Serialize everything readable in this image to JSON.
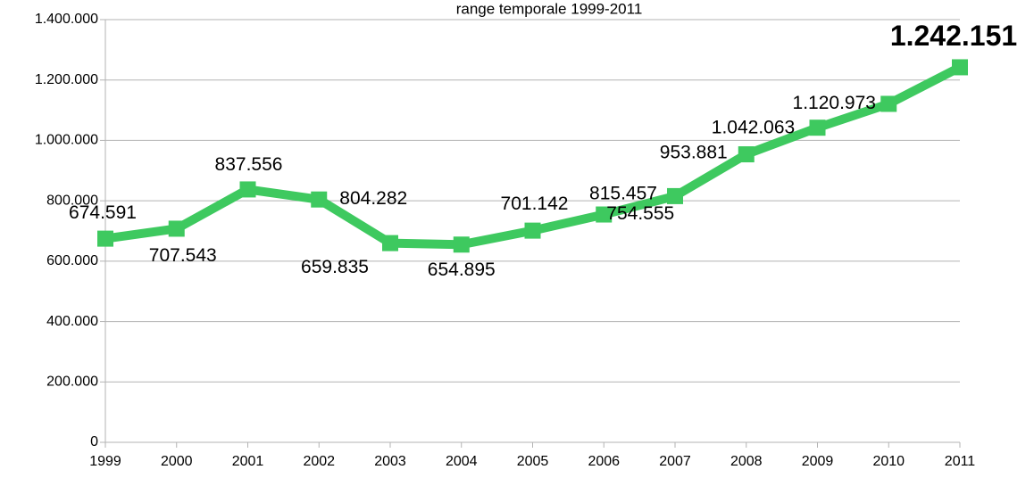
{
  "chart_data": {
    "type": "line",
    "title": "range temporale 1999-2011",
    "categories": [
      "1999",
      "2000",
      "2001",
      "2002",
      "2003",
      "2004",
      "2005",
      "2006",
      "2007",
      "2008",
      "2009",
      "2010",
      "2011"
    ],
    "series": [
      {
        "name": null,
        "color": "#3ec95f",
        "values": [
          674591,
          707543,
          837556,
          804282,
          659835,
          654895,
          701142,
          754555,
          815457,
          953881,
          1042063,
          1120973,
          1242151
        ],
        "value_labels": [
          "674.591",
          "707.543",
          "837.556",
          "804.282",
          "659.835",
          "654.895",
          "701.142",
          "754.555",
          "815.457",
          "953.881",
          "1.042.063",
          "1.120.973",
          "1.242.151"
        ]
      }
    ],
    "ylim": [
      0,
      1400000
    ],
    "yticks": [
      0,
      {
        "value": 200000,
        "label": "200.000"
      },
      {
        "value": 400000,
        "label": "400.000"
      },
      {
        "value": 600000,
        "label": "600.000"
      },
      {
        "value": 800000,
        "label": "800.000"
      },
      {
        "value": 1000000,
        "label": "1.000.000"
      },
      {
        "value": 1200000,
        "label": "1.200.000"
      },
      {
        "value": 1400000,
        "label": "1.400.000"
      }
    ],
    "grid": true
  }
}
